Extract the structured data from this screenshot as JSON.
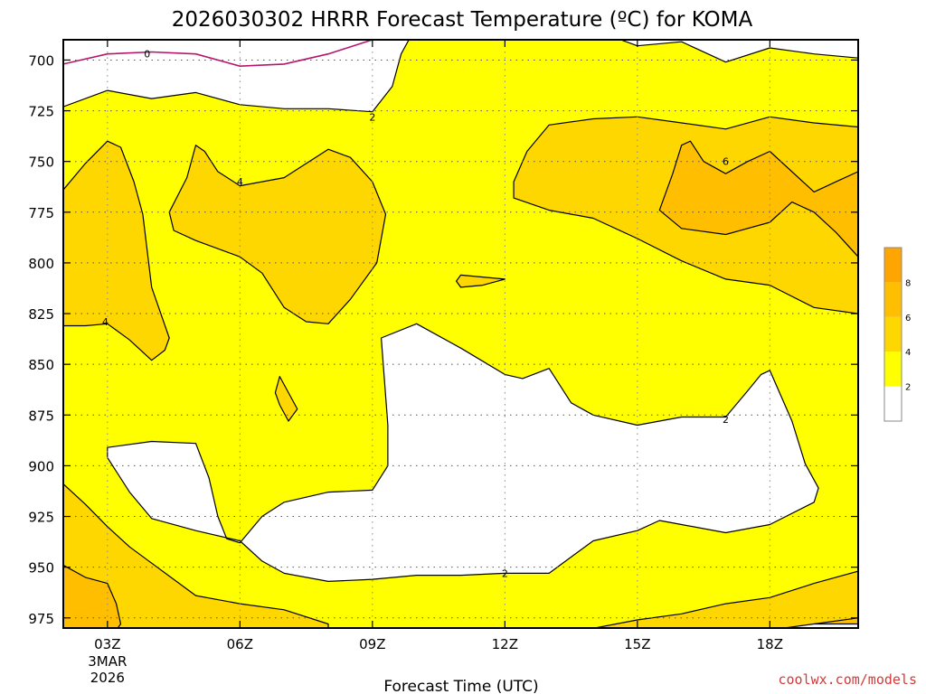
{
  "chart_data": {
    "type": "contour",
    "title": "2026030302 HRRR Forecast Temperature (ºC) for KOMA",
    "xlabel": "Forecast Time (UTC)",
    "ylabel": "",
    "x_unit": "hour UTC",
    "y_unit": "hPa",
    "xlim": [
      2,
      20
    ],
    "ylim": [
      980,
      690
    ],
    "x_ticks": [
      {
        "value": 3,
        "label": "03Z",
        "sub1": "3MAR",
        "sub2": "2026"
      },
      {
        "value": 6,
        "label": "06Z"
      },
      {
        "value": 9,
        "label": "09Z"
      },
      {
        "value": 12,
        "label": "12Z"
      },
      {
        "value": 15,
        "label": "15Z"
      },
      {
        "value": 18,
        "label": "18Z"
      }
    ],
    "y_ticks": [
      {
        "value": 700,
        "label": "700"
      },
      {
        "value": 725,
        "label": "725"
      },
      {
        "value": 750,
        "label": "750"
      },
      {
        "value": 775,
        "label": "775"
      },
      {
        "value": 800,
        "label": "800"
      },
      {
        "value": 825,
        "label": "825"
      },
      {
        "value": 850,
        "label": "850"
      },
      {
        "value": 875,
        "label": "875"
      },
      {
        "value": 900,
        "label": "900"
      },
      {
        "value": 925,
        "label": "925"
      },
      {
        "value": 950,
        "label": "950"
      },
      {
        "value": 975,
        "label": "975"
      }
    ],
    "grid": true,
    "legend": {
      "placement": "right",
      "bins": [
        {
          "from": 0,
          "to": 2,
          "color": "#ffffff"
        },
        {
          "from": 2,
          "to": 4,
          "color": "#ffff00"
        },
        {
          "from": 4,
          "to": 6,
          "color": "#ffd700"
        },
        {
          "from": 6,
          "to": 8,
          "color": "#ffbf00"
        },
        {
          "from": 8,
          "to": 10,
          "color": "#ffa500"
        }
      ],
      "labels": [
        "2",
        "4",
        "6",
        "8"
      ]
    },
    "ground_color": "#a0522d",
    "ground_level_hpa": 981,
    "fill_regions": [
      {
        "level": "2-4",
        "color": "#ffff00",
        "points": [
          [
            2,
            723
          ],
          [
            3,
            715
          ],
          [
            4,
            719
          ],
          [
            5,
            716
          ],
          [
            6,
            722
          ],
          [
            7,
            724
          ],
          [
            8,
            724
          ],
          [
            9,
            725.5
          ],
          [
            9.45,
            713
          ],
          [
            9.65,
            697
          ],
          [
            10,
            683
          ],
          [
            11,
            679
          ],
          [
            13,
            679
          ],
          [
            14,
            685
          ],
          [
            15,
            693
          ],
          [
            16,
            691
          ],
          [
            17,
            701
          ],
          [
            18,
            694
          ],
          [
            19,
            697
          ],
          [
            20,
            699
          ],
          [
            20,
            980
          ],
          [
            2,
            980
          ]
        ]
      },
      {
        "level": "4-6",
        "color": "#ffd700",
        "points": [
          [
            12.2,
            760
          ],
          [
            12.5,
            745
          ],
          [
            13,
            732
          ],
          [
            14,
            729
          ],
          [
            15,
            728
          ],
          [
            16,
            731
          ],
          [
            17,
            734
          ],
          [
            18,
            728
          ],
          [
            19,
            731
          ],
          [
            20,
            733
          ],
          [
            20,
            825
          ],
          [
            19,
            822
          ],
          [
            18,
            811
          ],
          [
            17,
            808
          ],
          [
            16,
            799
          ],
          [
            15,
            788
          ],
          [
            14,
            778
          ],
          [
            13,
            774
          ],
          [
            12.2,
            768
          ]
        ]
      },
      {
        "level": "4-6",
        "color": "#ffd700",
        "points": [
          [
            2,
            764
          ],
          [
            2.5,
            751
          ],
          [
            3,
            740
          ],
          [
            3.3,
            743
          ],
          [
            3.6,
            760
          ],
          [
            3.8,
            776
          ],
          [
            4,
            812
          ],
          [
            4.4,
            837
          ],
          [
            4.3,
            843
          ],
          [
            4,
            848
          ],
          [
            3.5,
            838
          ],
          [
            3,
            830
          ],
          [
            2.5,
            831
          ],
          [
            2,
            831
          ]
        ]
      },
      {
        "level": "4-6",
        "color": "#ffd700",
        "points": [
          [
            4.4,
            775
          ],
          [
            4.8,
            758
          ],
          [
            5,
            742
          ],
          [
            5.2,
            745
          ],
          [
            5.5,
            755
          ],
          [
            6,
            762
          ],
          [
            7,
            758
          ],
          [
            8,
            744
          ],
          [
            8.5,
            748
          ],
          [
            9,
            760
          ],
          [
            9.3,
            776
          ],
          [
            9.1,
            800
          ],
          [
            8.5,
            818
          ],
          [
            8,
            830
          ],
          [
            7.5,
            829
          ],
          [
            7,
            822
          ],
          [
            6.5,
            805
          ],
          [
            6,
            797
          ],
          [
            5,
            789
          ],
          [
            4.5,
            784
          ]
        ]
      },
      {
        "level": "4-6",
        "color": "#ffd700",
        "points": [
          [
            6.9,
            856
          ],
          [
            7.3,
            872
          ],
          [
            7.1,
            878
          ],
          [
            6.9,
            870
          ],
          [
            6.8,
            864
          ]
        ]
      },
      {
        "level": "4-6",
        "color": "#ffd700",
        "points": [
          [
            11,
            806
          ],
          [
            11.5,
            807
          ],
          [
            12,
            808
          ],
          [
            11.5,
            811
          ],
          [
            11,
            812
          ],
          [
            10.9,
            809
          ]
        ]
      },
      {
        "level": "4-6",
        "color": "#ffd700",
        "points": [
          [
            2,
            909
          ],
          [
            2.5,
            919
          ],
          [
            3,
            930
          ],
          [
            3.5,
            940
          ],
          [
            4,
            948
          ],
          [
            5,
            964
          ],
          [
            6,
            968
          ],
          [
            7,
            971
          ],
          [
            8,
            978
          ],
          [
            8,
            981
          ],
          [
            2,
            981
          ]
        ]
      },
      {
        "level": "4-6",
        "color": "#ffd700",
        "points": [
          [
            13.8,
            981
          ],
          [
            15,
            976
          ],
          [
            16,
            973
          ],
          [
            17,
            968
          ],
          [
            18,
            965
          ],
          [
            19,
            958
          ],
          [
            20,
            952
          ],
          [
            20,
            981
          ]
        ]
      },
      {
        "level": "6-8",
        "color": "#ffbf00",
        "points": [
          [
            15.5,
            774
          ],
          [
            15.8,
            756
          ],
          [
            16,
            742
          ],
          [
            16.2,
            740
          ],
          [
            16.5,
            750
          ],
          [
            17,
            756
          ],
          [
            17.5,
            750
          ],
          [
            18,
            745
          ],
          [
            19,
            765
          ],
          [
            19.5,
            760
          ],
          [
            20,
            755
          ],
          [
            20,
            797
          ],
          [
            19.5,
            785
          ],
          [
            19,
            775
          ],
          [
            18.5,
            770
          ],
          [
            18,
            780
          ],
          [
            17,
            786
          ],
          [
            16,
            783
          ]
        ]
      },
      {
        "level": "6-8",
        "color": "#ffbf00",
        "points": [
          [
            2,
            949
          ],
          [
            2.5,
            955
          ],
          [
            3,
            958
          ],
          [
            3.2,
            968
          ],
          [
            3.3,
            978
          ],
          [
            3.2,
            981
          ],
          [
            2,
            981
          ]
        ]
      },
      {
        "level": "6-8",
        "color": "#ffbf00",
        "points": [
          [
            18.5,
            981
          ],
          [
            19,
            978
          ],
          [
            20,
            975
          ],
          [
            20,
            981
          ]
        ]
      },
      {
        "level": "0-2",
        "color": "#ffffff",
        "points": [
          [
            3,
            891
          ],
          [
            4,
            888
          ],
          [
            5,
            889
          ],
          [
            5.3,
            906
          ],
          [
            5.5,
            925
          ],
          [
            5.7,
            936
          ],
          [
            6,
            938
          ],
          [
            6.5,
            925
          ],
          [
            7,
            918
          ],
          [
            8,
            913
          ],
          [
            9,
            912
          ],
          [
            9.35,
            900
          ],
          [
            9.35,
            880
          ],
          [
            9.2,
            837
          ],
          [
            10,
            830
          ],
          [
            11,
            842
          ],
          [
            12,
            855
          ],
          [
            12.4,
            857
          ],
          [
            13,
            852
          ],
          [
            13.5,
            869
          ],
          [
            14,
            875
          ],
          [
            15,
            880
          ],
          [
            16,
            876
          ],
          [
            17,
            876
          ],
          [
            17.5,
            863
          ],
          [
            17.8,
            855
          ],
          [
            18,
            853
          ],
          [
            18.5,
            878
          ],
          [
            18.8,
            899
          ],
          [
            19.1,
            911
          ],
          [
            19,
            918
          ],
          [
            18,
            929
          ],
          [
            17,
            933
          ],
          [
            16,
            929
          ],
          [
            15.5,
            927
          ],
          [
            15,
            932
          ],
          [
            14,
            937
          ],
          [
            13.5,
            945
          ],
          [
            13,
            953
          ],
          [
            12,
            953
          ],
          [
            11,
            954
          ],
          [
            10,
            954
          ],
          [
            9,
            956
          ],
          [
            8,
            957
          ],
          [
            7,
            953
          ],
          [
            6.5,
            947
          ],
          [
            6,
            937
          ],
          [
            5,
            932
          ],
          [
            4,
            926
          ],
          [
            3.5,
            913
          ],
          [
            3,
            896
          ]
        ]
      },
      {
        "level": "0-2",
        "color": "#ffffff",
        "points": [
          [
            18,
            981
          ],
          [
            19,
            978
          ],
          [
            20,
            978
          ],
          [
            20,
            981
          ]
        ]
      }
    ],
    "contour_lines": [
      {
        "level": "0",
        "color": "#b5166b",
        "points": [
          [
            2,
            702
          ],
          [
            3,
            697
          ],
          [
            4,
            696
          ],
          [
            5,
            697
          ],
          [
            6,
            703
          ],
          [
            7,
            702
          ],
          [
            8,
            697
          ],
          [
            9,
            690
          ]
        ]
      }
    ],
    "contour_labels": [
      {
        "text": "0",
        "x": 3.9,
        "y": 697
      },
      {
        "text": "2",
        "x": 9.0,
        "y": 728
      },
      {
        "text": "2",
        "x": 12.0,
        "y": 953
      },
      {
        "text": "2",
        "x": 17.0,
        "y": 877
      },
      {
        "text": "4",
        "x": 6.0,
        "y": 760
      },
      {
        "text": "4",
        "x": 2.95,
        "y": 829
      },
      {
        "text": "6",
        "x": 17.0,
        "y": 750
      }
    ]
  },
  "footer": {
    "credit": "coolwx.com/models"
  }
}
